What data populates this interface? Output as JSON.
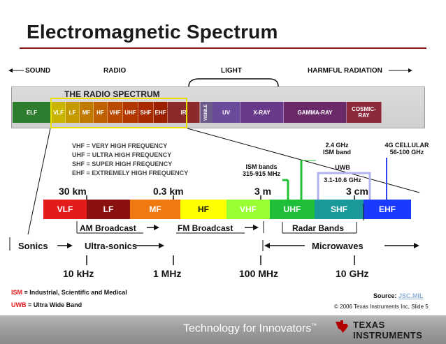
{
  "slide": {
    "title": "Electromagnetic Spectrum"
  },
  "top_categories": {
    "sound": "SOUND",
    "radio": "RADIO",
    "light": "LIGHT",
    "harmful": "HARMFUL RADIATION"
  },
  "radio_spectrum_strip": {
    "title": "THE RADIO SPECTRUM",
    "bands": [
      {
        "label": "ELF",
        "color": "#2e7d2e"
      },
      {
        "label": "VLF",
        "color": "#c9b400"
      },
      {
        "label": "LF",
        "color": "#c49a00"
      },
      {
        "label": "MF",
        "color": "#c07a00"
      },
      {
        "label": "HF",
        "color": "#c06000"
      },
      {
        "label": "VHF",
        "color": "#b94a00"
      },
      {
        "label": "UHF",
        "color": "#b23800"
      },
      {
        "label": "SHF",
        "color": "#a82a00"
      },
      {
        "label": "EHF",
        "color": "#9a2000"
      },
      {
        "label": "IR",
        "color": "#8a2a2a"
      },
      {
        "label": "VISIBLE",
        "color": "#6b5a8a"
      },
      {
        "label": "UV",
        "color": "#6a4a9a"
      },
      {
        "label": "X-RAY",
        "color": "#6a3a8a"
      },
      {
        "label": "GAMMA-RAY",
        "color": "#6a2a6a"
      },
      {
        "label": "COSMIC-RAY",
        "color": "#8a2a3a"
      }
    ]
  },
  "definitions": [
    "VHF = VERY HIGH FREQUENCY",
    "UHF = ULTRA HIGH FREQUENCY",
    "SHF = SUPER HIGH FREQUENCY",
    "EHF = EXTREMELY HIGH FREQUENCY"
  ],
  "annotations": {
    "ism_bands": "ISM bands",
    "ism_range": "315-915 MHz",
    "ghz24": "2.4 GHz",
    "ism_band": "ISM band",
    "uwb": "UWB",
    "uwb_range": "3.1-10.6 GHz",
    "cellular": "4G CELLULAR",
    "cellular_range": "56-100 GHz"
  },
  "wavelengths": [
    "30 km",
    "0.3 km",
    "3 m",
    "3 cm"
  ],
  "bands": [
    {
      "label": "VLF",
      "color": "#e31b1b",
      "text": "#ffffff"
    },
    {
      "label": "LF",
      "color": "#8b1010",
      "text": "#ffffff"
    },
    {
      "label": "MF",
      "color": "#f07a10",
      "text": "#ffffff"
    },
    {
      "label": "HF",
      "color": "#ffff00",
      "text": "#111111"
    },
    {
      "label": "VHF",
      "color": "#99ff33",
      "text": "#ffffff"
    },
    {
      "label": "UHF",
      "color": "#1fbf3a",
      "text": "#ffffff"
    },
    {
      "label": "SHF",
      "color": "#1a9a9a",
      "text": "#ffffff"
    },
    {
      "label": "EHF",
      "color": "#1a3aff",
      "text": "#ffffff"
    }
  ],
  "ranges": {
    "am": "AM Broadcast",
    "fm": "FM Broadcast",
    "radar": "Radar Bands",
    "sonics": "Sonics",
    "ultrasonics": "Ultra-sonics",
    "microwaves": "Microwaves"
  },
  "frequencies": [
    "10 kHz",
    "1 MHz",
    "100 MHz",
    "10 GHz"
  ],
  "notes": {
    "ism_abbr": "ISM",
    "ism_def": " = Industrial, Scientific and Medical",
    "uwb_abbr": "UWB",
    "uwb_def": " = Ultra Wide Band",
    "source_label": "Source: ",
    "source_value": "JSC.MIL",
    "copyright": "© 2006 Texas Instruments Inc, Slide 5"
  },
  "footer": {
    "tagline": "Technology for Innovators",
    "tm": "™",
    "company": "TEXAS INSTRUMENTS"
  },
  "colors": {
    "abbr_red": "#e31b1b",
    "link": "#8fb0d8",
    "ism_line": "#22c033",
    "uwb_box": "#b3b3ee",
    "cell_line": "#3344ee"
  }
}
